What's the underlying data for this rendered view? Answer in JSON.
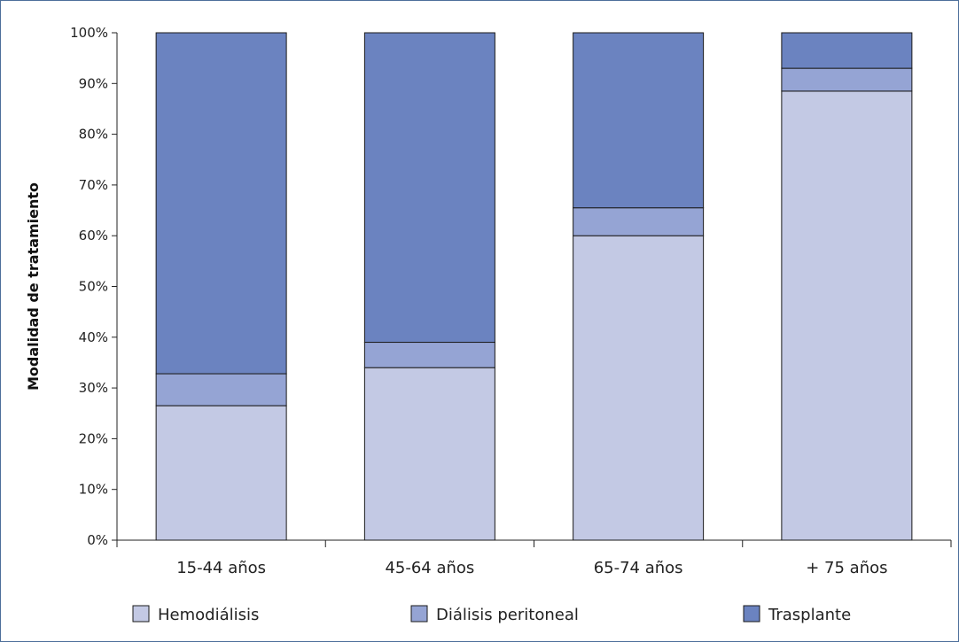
{
  "chart_data": {
    "type": "bar",
    "stacked": true,
    "title": "",
    "xlabel": "",
    "ylabel": "Modalidad de tratamiento",
    "ylim": [
      0,
      100
    ],
    "yticks": [
      "0%",
      "10%",
      "20%",
      "30%",
      "40%",
      "50%",
      "60%",
      "70%",
      "80%",
      "90%",
      "100%"
    ],
    "categories": [
      "15-44 años",
      "45-64 años",
      "65-74 años",
      "+ 75 años"
    ],
    "series": [
      {
        "name": "Hemodiálisis",
        "color": "#c3c9e4",
        "values": [
          26.5,
          34,
          60,
          88.5
        ]
      },
      {
        "name": "Diálisis peritoneal",
        "color": "#95a4d4",
        "values": [
          6.3,
          5,
          5.5,
          4.5
        ]
      },
      {
        "name": "Trasplante",
        "color": "#6b83c0",
        "values": [
          67.2,
          61,
          34.5,
          7
        ]
      }
    ],
    "grid": false,
    "legend_position": "bottom"
  }
}
